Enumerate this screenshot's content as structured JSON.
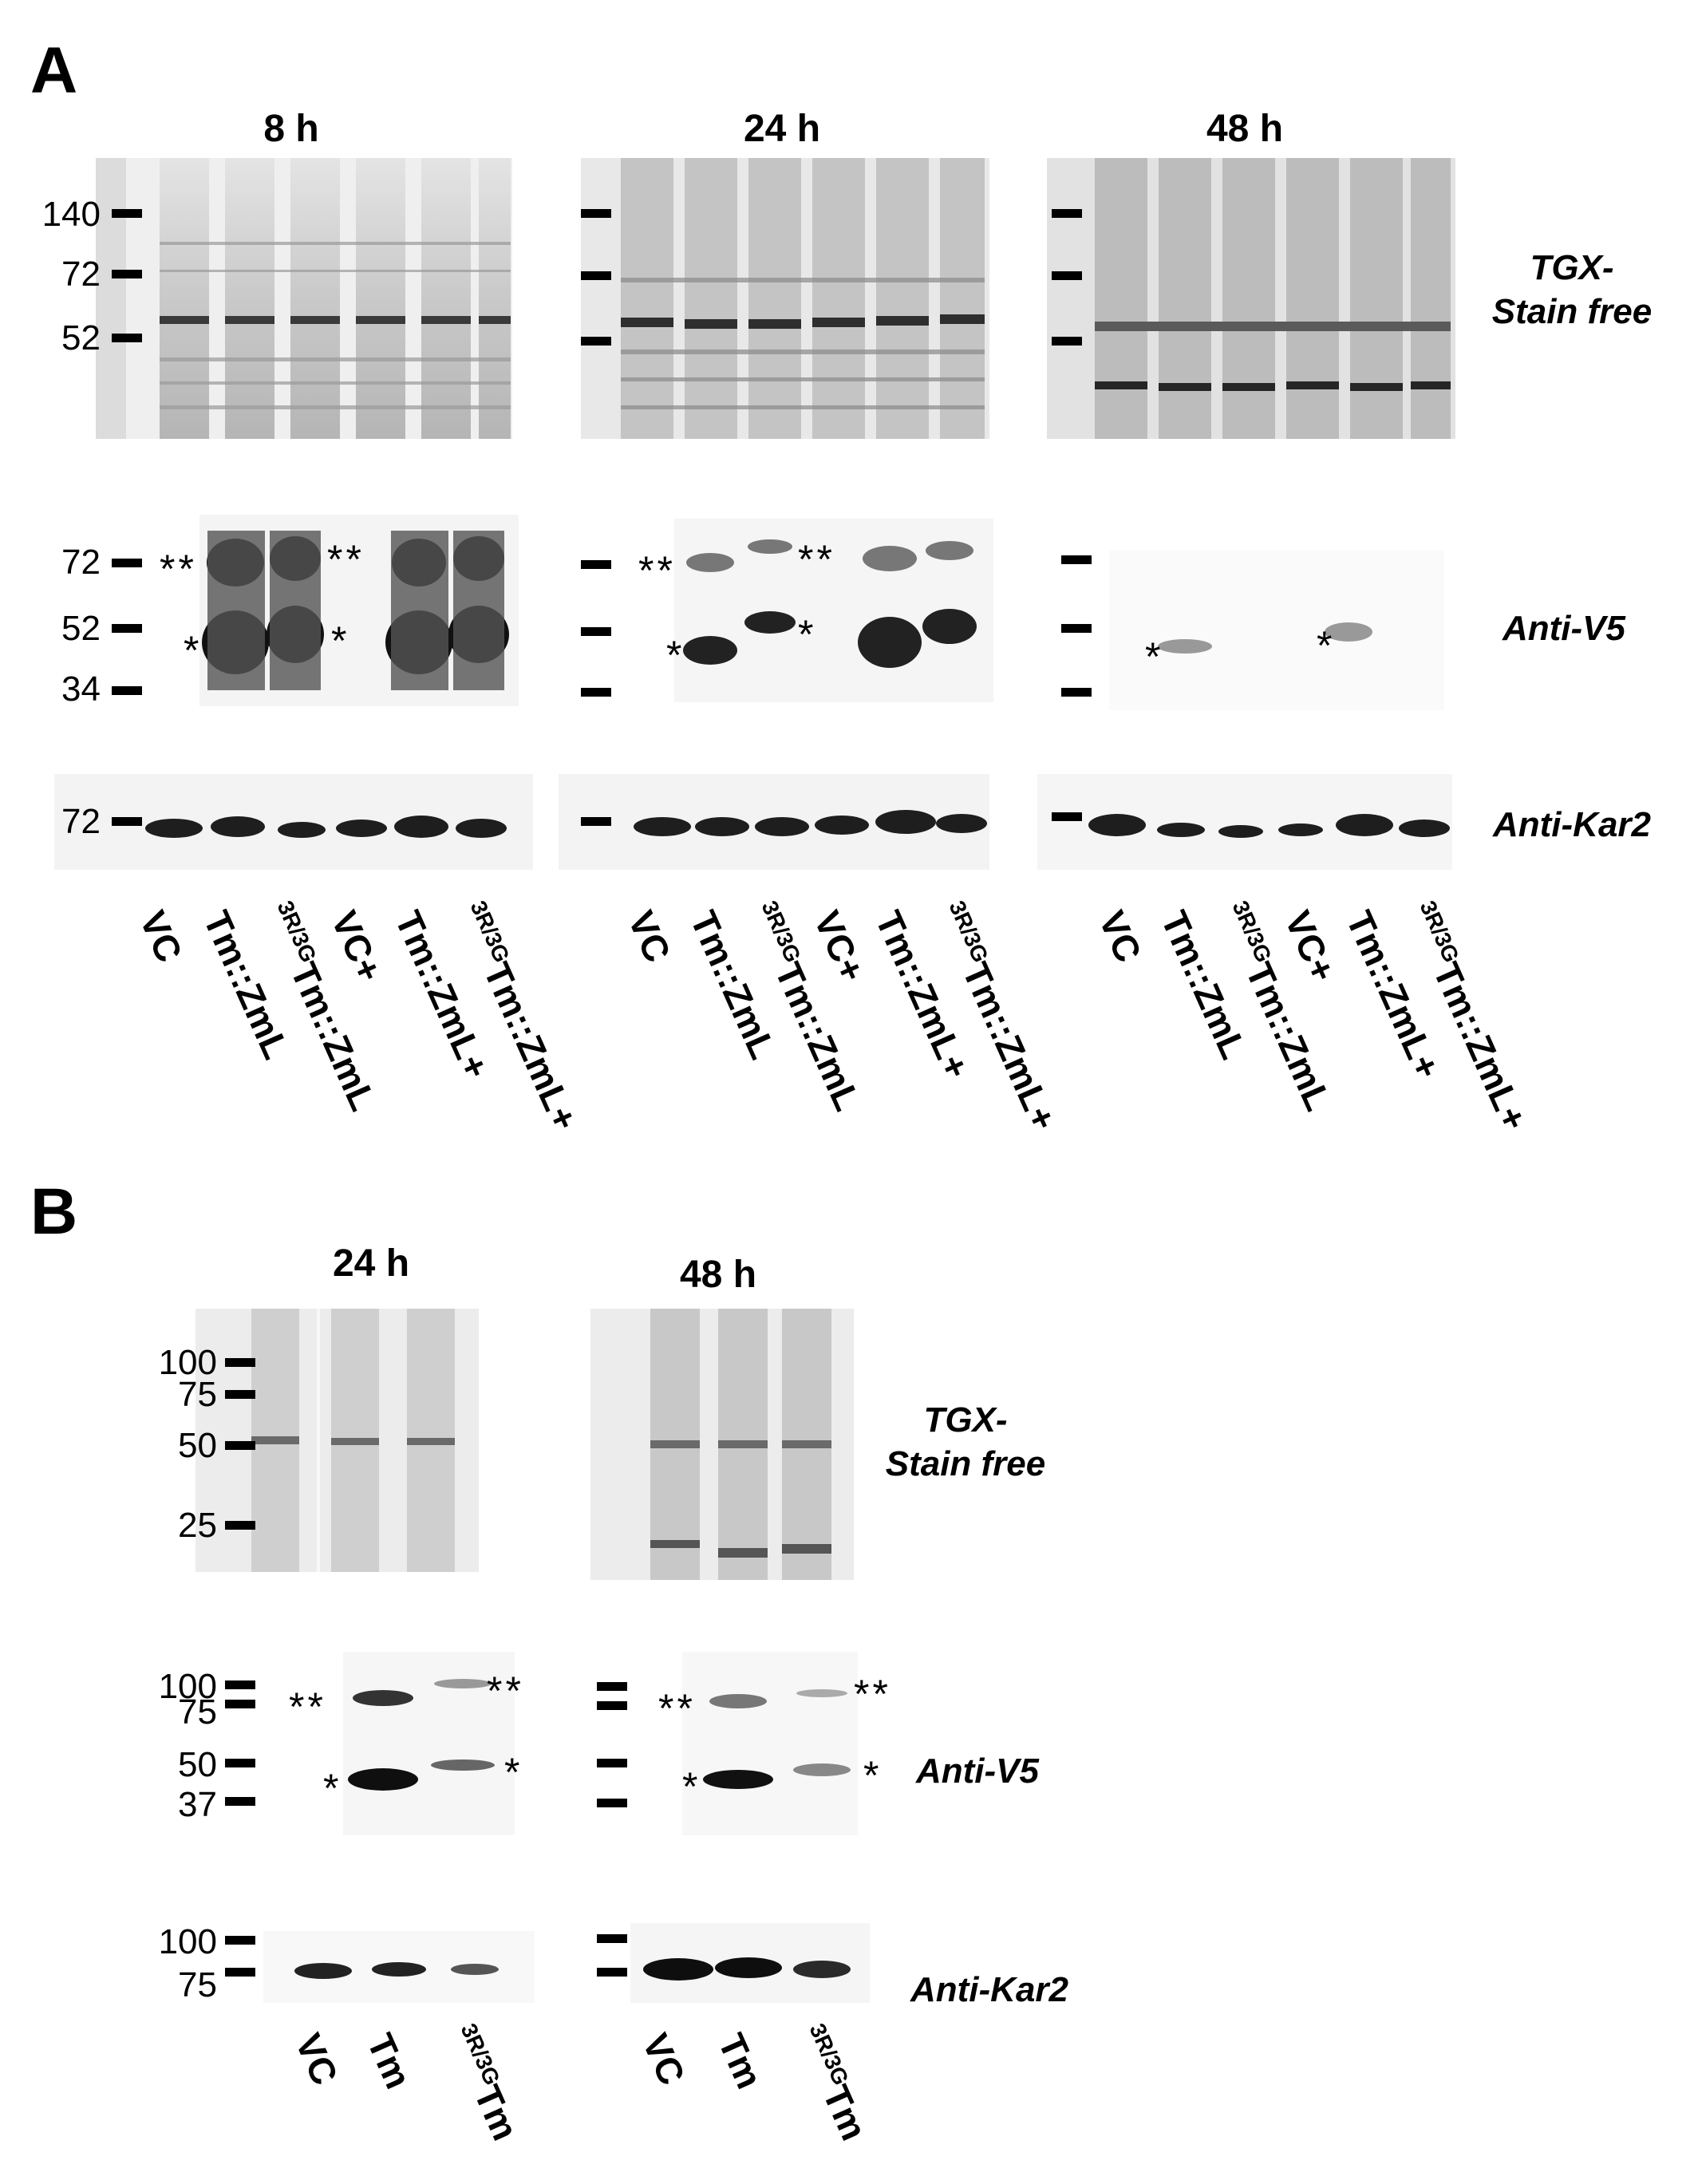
{
  "panel_a": {
    "letter": "A",
    "timepoints": [
      "8 h",
      "24 h",
      "48 h"
    ],
    "stain_label_line1": "TGX-",
    "stain_label_line2": "Stain free",
    "v5_label": "Anti-V5",
    "kar2_label": "Anti-Kar2",
    "stain_markers": [
      "140",
      "72",
      "52"
    ],
    "v5_markers": [
      "72",
      "52",
      "34"
    ],
    "kar2_markers": [
      "72"
    ],
    "lanes": [
      {
        "sup": "",
        "text": "VC"
      },
      {
        "sup": "",
        "text": "Tm::ZmL"
      },
      {
        "sup": "3R/3G",
        "text": "Tm::ZmL"
      },
      {
        "sup": "",
        "text": "VC+"
      },
      {
        "sup": "",
        "text": "Tm::ZmL+"
      },
      {
        "sup": "3R/3G",
        "text": "Tm::ZmL+"
      }
    ]
  },
  "panel_b": {
    "letter": "B",
    "timepoints": [
      "24 h",
      "48 h"
    ],
    "stain_label_line1": "TGX-",
    "stain_label_line2": "Stain free",
    "v5_label": "Anti-V5",
    "kar2_label": "Anti-Kar2",
    "stain_markers": [
      "100",
      "75",
      "50",
      "25"
    ],
    "v5_markers": [
      "100",
      "75",
      "50",
      "37"
    ],
    "kar2_markers": [
      "100",
      "75"
    ],
    "lanes": [
      {
        "sup": "",
        "text": "VC"
      },
      {
        "sup": "",
        "text": "Tm"
      },
      {
        "sup": "3R/3G",
        "text": "Tm"
      }
    ]
  },
  "annotations": {
    "single": "*",
    "double": "**"
  }
}
